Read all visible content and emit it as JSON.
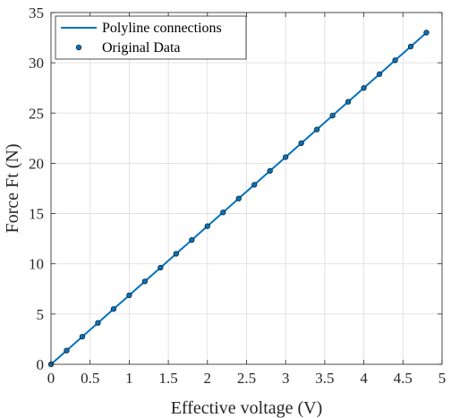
{
  "chart_data": {
    "type": "line",
    "xlabel": "Effective voltage (V)",
    "ylabel": "Force Ft (N)",
    "xlim": [
      0,
      5
    ],
    "ylim": [
      0,
      35
    ],
    "xticks": [
      "0",
      "0.5",
      "1",
      "1.5",
      "2",
      "2.5",
      "3",
      "3.5",
      "4",
      "4.5",
      "5"
    ],
    "yticks": [
      "0",
      "5",
      "10",
      "15",
      "20",
      "25",
      "30",
      "35"
    ],
    "grid": true,
    "legend_position": "top-left",
    "series": [
      {
        "name": "Polyline connections",
        "style": "line",
        "color": "#0072BD",
        "x": [
          0,
          0.2,
          0.4,
          0.6,
          0.8,
          1.0,
          1.2,
          1.4,
          1.6,
          1.8,
          2.0,
          2.2,
          2.4,
          2.6,
          2.8,
          3.0,
          3.2,
          3.4,
          3.6,
          3.8,
          4.0,
          4.2,
          4.4,
          4.6,
          4.8
        ],
        "values": [
          0,
          1.37,
          2.75,
          4.12,
          5.5,
          6.87,
          8.25,
          9.62,
          11.0,
          12.37,
          13.75,
          15.12,
          16.5,
          17.87,
          19.25,
          20.62,
          22.0,
          23.37,
          24.75,
          26.12,
          27.5,
          28.87,
          30.25,
          31.62,
          33.0
        ]
      },
      {
        "name": "Original Data",
        "style": "markers",
        "color": "#0072BD",
        "x": [
          0,
          0.2,
          0.4,
          0.6,
          0.8,
          1.0,
          1.2,
          1.4,
          1.6,
          1.8,
          2.0,
          2.2,
          2.4,
          2.6,
          2.8,
          3.0,
          3.2,
          3.4,
          3.6,
          3.8,
          4.0,
          4.2,
          4.4,
          4.6,
          4.8
        ],
        "values": [
          0,
          1.37,
          2.75,
          4.12,
          5.5,
          6.87,
          8.25,
          9.62,
          11.0,
          12.37,
          13.75,
          15.12,
          16.5,
          17.87,
          19.25,
          20.62,
          22.0,
          23.37,
          24.75,
          26.12,
          27.5,
          28.87,
          30.25,
          31.62,
          33.0
        ]
      }
    ]
  }
}
